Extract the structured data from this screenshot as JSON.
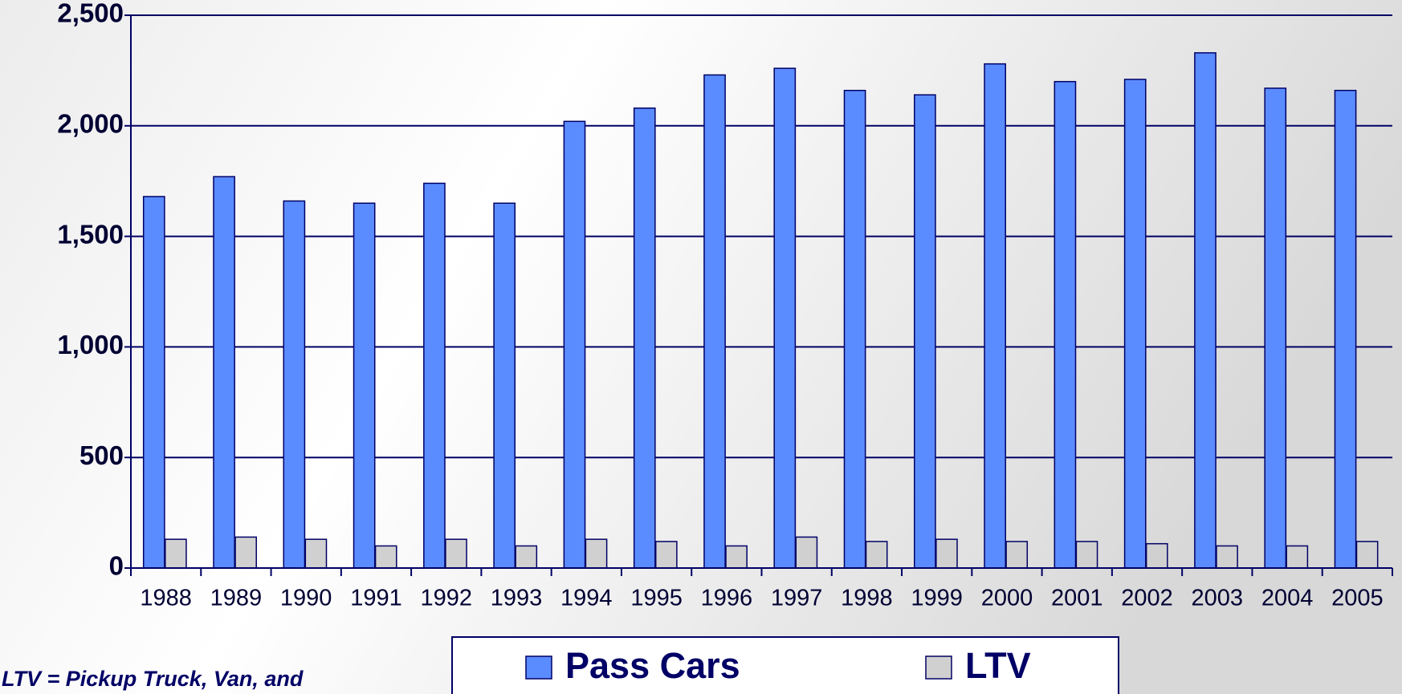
{
  "chart_data": {
    "type": "bar",
    "categories": [
      "1988",
      "1989",
      "1990",
      "1991",
      "1992",
      "1993",
      "1994",
      "1995",
      "1996",
      "1997",
      "1998",
      "1999",
      "2000",
      "2001",
      "2002",
      "2003",
      "2004",
      "2005"
    ],
    "series": [
      {
        "name": "Pass Cars",
        "color": "#5b8cff",
        "values": [
          1680,
          1770,
          1660,
          1650,
          1740,
          1650,
          2020,
          2080,
          2230,
          2260,
          2160,
          2140,
          2280,
          2200,
          2210,
          2330,
          2170,
          2160
        ]
      },
      {
        "name": "LTV",
        "color": "#d0d0d0",
        "values": [
          130,
          140,
          130,
          100,
          130,
          100,
          130,
          120,
          100,
          140,
          120,
          130,
          120,
          120,
          110,
          100,
          100,
          120
        ]
      }
    ],
    "ylim": [
      0,
      2500
    ],
    "yticks": [
      0,
      {
        "value": 500,
        "label": "500"
      },
      {
        "value": 1000,
        "label": "1,000"
      },
      {
        "value": 1500,
        "label": "1,500"
      },
      {
        "value": 2000,
        "label": "2,000"
      },
      {
        "value": 2500,
        "label": "2,500"
      }
    ],
    "grid": true,
    "legend": "bottom",
    "annotation": "LTV = Pickup Truck, Van, and"
  }
}
